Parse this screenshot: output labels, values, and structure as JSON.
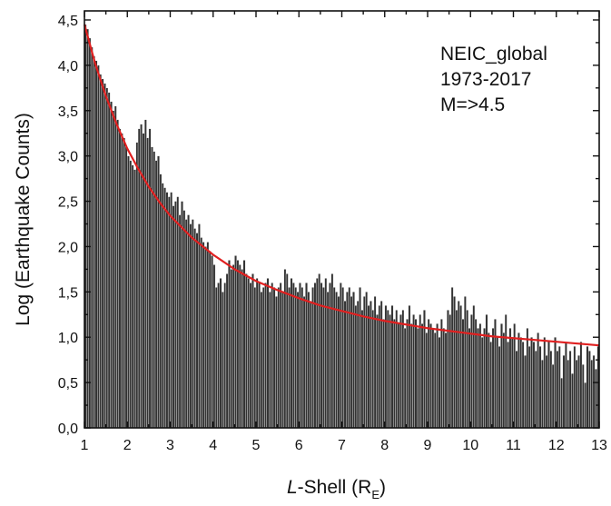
{
  "chart_data": {
    "type": "bar",
    "ylabel": "Log (Earthquake Counts)",
    "xlabel": {
      "prefix": "L",
      "main": "-Shell (R",
      "sub": "E",
      "suffix": ")"
    },
    "xlim": [
      1,
      13
    ],
    "ylim": [
      0,
      4.6
    ],
    "x_ticks": [
      1,
      2,
      3,
      4,
      5,
      6,
      7,
      8,
      9,
      10,
      11,
      12,
      13
    ],
    "x_tick_labels": [
      "1",
      "2",
      "3",
      "4",
      "5",
      "6",
      "7",
      "8",
      "9",
      "10",
      "11",
      "12",
      "13"
    ],
    "y_ticks": [
      0,
      0.5,
      1.0,
      1.5,
      2.0,
      2.5,
      3.0,
      3.5,
      4.0,
      4.5
    ],
    "y_tick_labels": [
      "0,0",
      "0,5",
      "1,0",
      "1,5",
      "2,0",
      "2,5",
      "3,0",
      "3,5",
      "4,0",
      "4,5"
    ],
    "annotation": [
      "NEIC_global",
      "1973-2017",
      "M=>4.5"
    ],
    "bar_color": "#333333",
    "bar_outline": "#ffffff",
    "fit_color": "#e02020",
    "grid": false,
    "bins": {
      "start": 1.0,
      "width": 0.05
    },
    "values": [
      4.45,
      4.4,
      4.3,
      4.2,
      4.1,
      4.05,
      4.0,
      3.9,
      3.85,
      3.8,
      3.75,
      3.7,
      3.6,
      3.5,
      3.55,
      3.4,
      3.3,
      3.25,
      3.2,
      3.1,
      3.0,
      2.95,
      2.9,
      2.85,
      3.15,
      3.3,
      3.35,
      3.25,
      3.4,
      3.2,
      3.3,
      3.1,
      3.05,
      2.95,
      3.0,
      2.8,
      2.7,
      2.65,
      2.6,
      2.55,
      2.6,
      2.45,
      2.5,
      2.55,
      2.35,
      2.5,
      2.4,
      2.3,
      2.35,
      2.25,
      2.3,
      2.2,
      2.15,
      2.25,
      2.1,
      2.05,
      2.0,
      2.05,
      1.95,
      1.9,
      1.8,
      1.55,
      1.6,
      1.65,
      1.5,
      1.6,
      1.7,
      1.85,
      1.75,
      1.8,
      1.9,
      1.85,
      1.8,
      1.75,
      1.85,
      1.7,
      1.65,
      1.6,
      1.7,
      1.55,
      1.65,
      1.6,
      1.5,
      1.55,
      1.6,
      1.65,
      1.5,
      1.6,
      1.55,
      1.45,
      1.55,
      1.6,
      1.5,
      1.75,
      1.7,
      1.55,
      1.65,
      1.6,
      1.55,
      1.5,
      1.6,
      1.55,
      1.45,
      1.6,
      1.5,
      1.4,
      1.55,
      1.6,
      1.65,
      1.7,
      1.6,
      1.55,
      1.65,
      1.5,
      1.6,
      1.7,
      1.55,
      1.5,
      1.45,
      1.6,
      1.55,
      1.4,
      1.5,
      1.55,
      1.45,
      1.5,
      1.35,
      1.4,
      1.55,
      1.3,
      1.45,
      1.5,
      1.35,
      1.4,
      1.3,
      1.45,
      1.25,
      1.35,
      1.4,
      1.2,
      1.35,
      1.3,
      1.25,
      1.35,
      1.2,
      1.3,
      1.15,
      1.25,
      1.3,
      1.1,
      1.2,
      1.35,
      1.15,
      1.25,
      1.2,
      1.1,
      1.25,
      1.15,
      1.3,
      1.05,
      1.2,
      1.15,
      1.1,
      1.05,
      1.15,
      1.0,
      1.2,
      1.1,
      1.05,
      1.3,
      1.25,
      1.55,
      1.45,
      1.3,
      1.4,
      1.35,
      1.2,
      1.45,
      1.3,
      1.1,
      1.25,
      1.35,
      1.2,
      1.1,
      1.15,
      1.0,
      1.1,
      1.25,
      1.05,
      0.95,
      1.1,
      1.2,
      1.0,
      0.9,
      1.15,
      1.05,
      1.25,
      0.95,
      1.1,
      1.0,
      1.15,
      0.85,
      1.05,
      1.0,
      0.95,
      0.8,
      1.1,
      0.9,
      1.0,
      0.95,
      0.85,
      1.05,
      0.9,
      0.75,
      1.0,
      0.8,
      0.95,
      0.85,
      0.7,
      1.0,
      0.85,
      0.9,
      0.55,
      0.8,
      0.95,
      0.75,
      0.85,
      0.6,
      0.9,
      0.75,
      0.8,
      0.95,
      0.7,
      0.5,
      0.9,
      0.85,
      0.75,
      0.8,
      0.65,
      0.9
    ],
    "fit_points": [
      [
        1.0,
        4.45
      ],
      [
        1.25,
        4.02
      ],
      [
        1.5,
        3.66
      ],
      [
        1.75,
        3.35
      ],
      [
        2.0,
        3.08
      ],
      [
        2.25,
        2.86
      ],
      [
        2.5,
        2.66
      ],
      [
        2.75,
        2.49
      ],
      [
        3.0,
        2.34
      ],
      [
        3.5,
        2.1
      ],
      [
        4.0,
        1.91
      ],
      [
        4.5,
        1.75
      ],
      [
        5.0,
        1.62
      ],
      [
        5.5,
        1.52
      ],
      [
        6.0,
        1.43
      ],
      [
        6.5,
        1.35
      ],
      [
        7.0,
        1.29
      ],
      [
        7.5,
        1.23
      ],
      [
        8.0,
        1.18
      ],
      [
        8.5,
        1.14
      ],
      [
        9.0,
        1.1
      ],
      [
        9.5,
        1.07
      ],
      [
        10.0,
        1.04
      ],
      [
        10.5,
        1.01
      ],
      [
        11.0,
        0.99
      ],
      [
        11.5,
        0.97
      ],
      [
        12.0,
        0.95
      ],
      [
        12.5,
        0.93
      ],
      [
        13.0,
        0.91
      ]
    ]
  }
}
